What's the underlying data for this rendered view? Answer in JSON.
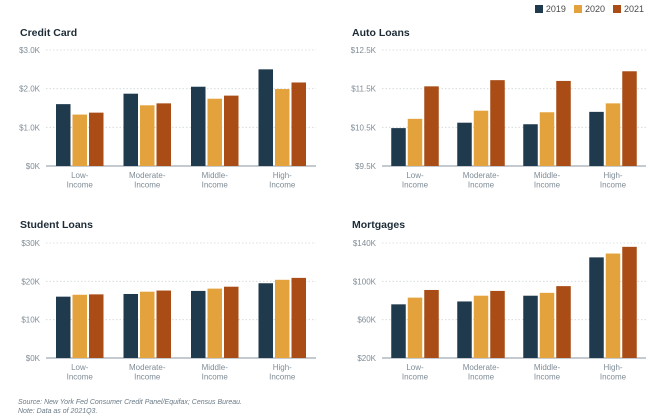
{
  "legend": [
    {
      "label": "2019",
      "color": "#1f3a4d"
    },
    {
      "label": "2020",
      "color": "#e4a23c"
    },
    {
      "label": "2021",
      "color": "#a94c16"
    }
  ],
  "notes": {
    "source": "Source: New York Fed Consumer Credit Panel/Equifax; Census Bureau.",
    "note": "Note: Data as of 2021Q3."
  },
  "chart_data": [
    {
      "type": "bar",
      "title": "Credit Card",
      "categories": [
        "Low-\nIncome",
        "Moderate-\nIncome",
        "Middle-\nIncome",
        "High-\nIncome"
      ],
      "ylim": [
        0,
        3000
      ],
      "yticks": [
        0,
        1000,
        2000,
        3000
      ],
      "ytick_labels": [
        "$0K",
        "$1.0K",
        "$2.0K",
        "$3.0K"
      ],
      "series": [
        {
          "name": "2019",
          "values": [
            1600,
            1870,
            2050,
            2500
          ]
        },
        {
          "name": "2020",
          "values": [
            1330,
            1570,
            1740,
            1990
          ]
        },
        {
          "name": "2021",
          "values": [
            1380,
            1620,
            1820,
            2160
          ]
        }
      ]
    },
    {
      "type": "bar",
      "title": "Auto Loans",
      "categories": [
        "Low-\nIncome",
        "Moderate-\nIncome",
        "Middle-\nIncome",
        "High-\nIncome"
      ],
      "ylim": [
        9500,
        12500
      ],
      "yticks": [
        9500,
        10500,
        11500,
        12500
      ],
      "ytick_labels": [
        "$9.5K",
        "$10.5K",
        "$11.5K",
        "$12.5K"
      ],
      "series": [
        {
          "name": "2019",
          "values": [
            10480,
            10620,
            10580,
            10900
          ]
        },
        {
          "name": "2020",
          "values": [
            10720,
            10930,
            10890,
            11120
          ]
        },
        {
          "name": "2021",
          "values": [
            11560,
            11720,
            11700,
            11950
          ]
        }
      ]
    },
    {
      "type": "bar",
      "title": "Student Loans",
      "categories": [
        "Low-\nIncome",
        "Moderate-\nIncome",
        "Middle-\nIncome",
        "High-\nIncome"
      ],
      "ylim": [
        0,
        30000
      ],
      "yticks": [
        0,
        10000,
        20000,
        30000
      ],
      "ytick_labels": [
        "$0K",
        "$10K",
        "$20K",
        "$30K"
      ],
      "series": [
        {
          "name": "2019",
          "values": [
            16000,
            16700,
            17500,
            19500
          ]
        },
        {
          "name": "2020",
          "values": [
            16500,
            17300,
            18100,
            20400
          ]
        },
        {
          "name": "2021",
          "values": [
            16600,
            17600,
            18600,
            20900
          ]
        }
      ]
    },
    {
      "type": "bar",
      "title": "Mortgages",
      "categories": [
        "Low-\nIncome",
        "Moderate-\nIncome",
        "Middle-\nIncome",
        "High-\nIncome"
      ],
      "ylim": [
        20000,
        140000
      ],
      "yticks": [
        20000,
        60000,
        100000,
        140000
      ],
      "ytick_labels": [
        "$20K",
        "$60K",
        "$100K",
        "$140K"
      ],
      "series": [
        {
          "name": "2019",
          "values": [
            76000,
            79000,
            85000,
            125000
          ]
        },
        {
          "name": "2020",
          "values": [
            83000,
            85000,
            88000,
            129000
          ]
        },
        {
          "name": "2021",
          "values": [
            91000,
            90000,
            95000,
            136000
          ]
        }
      ]
    }
  ]
}
